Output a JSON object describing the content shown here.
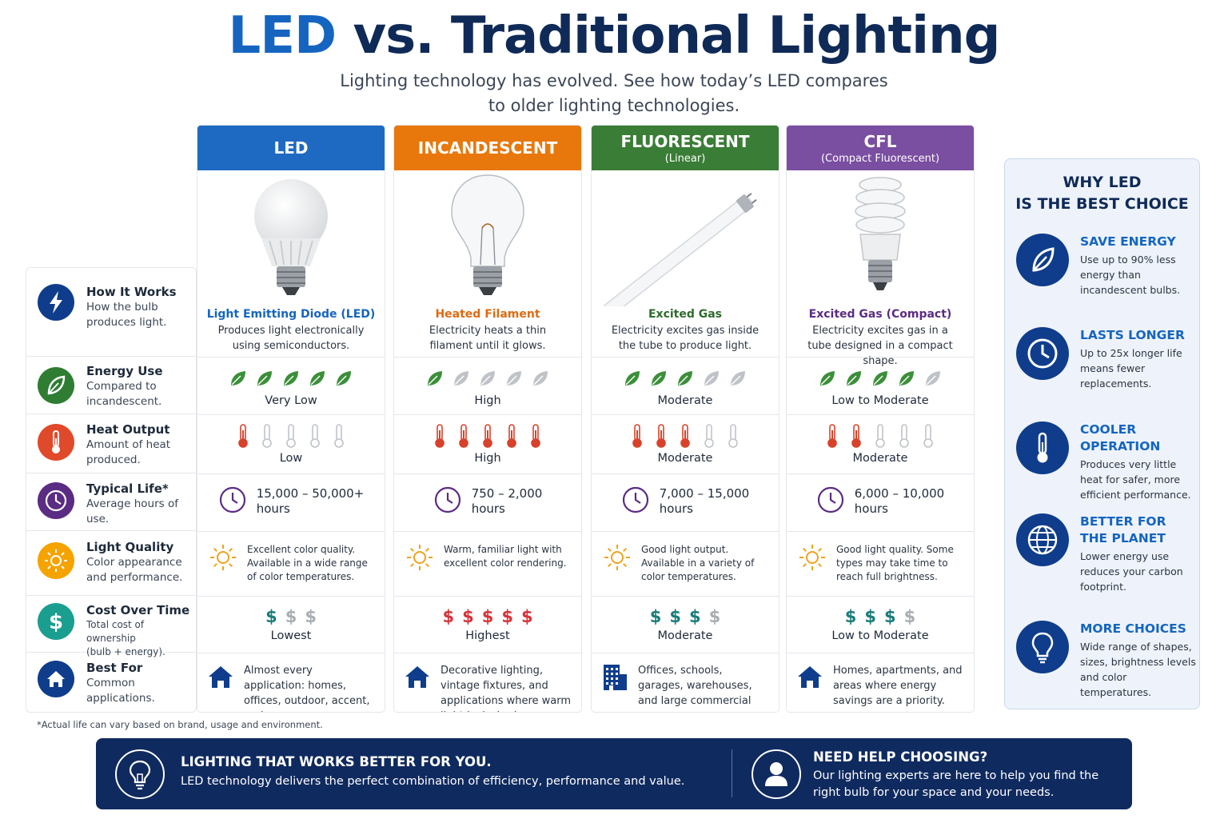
{
  "header": {
    "title_accent": "LED",
    "title_rest": " vs. Traditional Lighting",
    "subtitle_line1": "Lighting technology has evolved. See how today’s LED compares",
    "subtitle_line2": "to older lighting technologies."
  },
  "row_labels": [
    {
      "name": "How It Works",
      "desc": "How the bulb produces light.",
      "icon": "lightning-icon",
      "color": "#0f3d8c"
    },
    {
      "name": "Energy Use",
      "desc": "Compared to incandescent.",
      "icon": "leaf-icon",
      "color": "#2e7d32"
    },
    {
      "name": "Heat Output",
      "desc": "Amount of heat produced.",
      "icon": "thermometer-icon",
      "color": "#e04a2a"
    },
    {
      "name": "Typical Life*",
      "desc": "Average hours of use.",
      "icon": "clock-icon",
      "color": "#5b2c83"
    },
    {
      "name": "Light Quality",
      "desc": "Color appearance and performance.",
      "icon": "sun-icon",
      "color": "#f5a300"
    },
    {
      "name": "Cost Over Time",
      "desc_main": "Total cost of ownership",
      "desc_sub": "(bulb + energy).",
      "icon": "dollar-icon",
      "color": "#1a9e8f"
    },
    {
      "name": "Best For",
      "desc": "Common applications.",
      "icon": "house-icon",
      "color": "#0f3d8c"
    }
  ],
  "columns": [
    {
      "header": "LED",
      "header_sub": "",
      "header_color": "#1e6ac2",
      "tech_color": "#1565c0",
      "image": "led-bulb-image",
      "tech_name": "Light Emitting Diode (LED)",
      "tech_desc": "Produces light electronically using semiconductors.",
      "energy_level": 5,
      "energy_label": "Very Low",
      "heat_level": 1,
      "heat_label": "Low",
      "life_line1": "15,000 – 50,000+",
      "life_line2": "hours",
      "quality": "Excellent color quality. Available in a wide range of color temperatures.",
      "cost_level": 1,
      "cost_label": "Lowest",
      "cost_color": "#1a7d7a",
      "best_icon": "house-icon",
      "best_for": "Almost every application: homes, offices, outdoor, accent, and more."
    },
    {
      "header": "INCANDESCENT",
      "header_sub": "",
      "header_color": "#e8780c",
      "tech_color": "#e06a10",
      "image": "incandescent-bulb-image",
      "tech_name": "Heated Filament",
      "tech_desc": "Electricity heats a thin filament until it glows.",
      "energy_level": 1,
      "energy_label": "High",
      "heat_level": 5,
      "heat_label": "High",
      "life_line1": "750 – 2,000",
      "life_line2": "hours",
      "quality": "Warm, familiar light with excellent color rendering.",
      "cost_level": 5,
      "cost_label": "Highest",
      "cost_color": "#d6343a",
      "best_icon": "house-icon",
      "best_for": "Decorative lighting, vintage fixtures, and applications where warm light is desired."
    },
    {
      "header": "FLUORESCENT",
      "header_sub": "(Linear)",
      "header_color": "#3a7d36",
      "tech_color": "#2e6b2b",
      "image": "fluorescent-tube-image",
      "tech_name": "Excited Gas",
      "tech_desc": "Electricity excites gas inside the tube to produce light.",
      "energy_level": 3,
      "energy_label": "Moderate",
      "heat_level": 3,
      "heat_label": "Moderate",
      "life_line1": "7,000 – 15,000",
      "life_line2": "hours",
      "quality": "Good light output. Available in a variety of color temperatures.",
      "cost_level": 3,
      "cost_label": "Moderate",
      "cost_color": "#1a7d7a",
      "best_icon": "office-building-icon",
      "best_for": "Offices, schools, garages, warehouses, and large commercial spaces."
    },
    {
      "header": "CFL",
      "header_sub": "(Compact Fluorescent)",
      "header_color": "#7a4ea0",
      "tech_color": "#5b2c83",
      "image": "cfl-bulb-image",
      "tech_name": "Excited Gas (Compact)",
      "tech_desc": "Electricity excites gas in a tube designed in a compact shape.",
      "energy_level": 4,
      "energy_label": "Low to Moderate",
      "heat_level": 2,
      "heat_label": "Moderate",
      "life_line1": "6,000 – 10,000",
      "life_line2": "hours",
      "quality": "Good light quality. Some types may take time to reach full brightness.",
      "cost_level": 3,
      "cost_label": "Low to Moderate",
      "cost_color": "#1a7d7a",
      "best_icon": "house-icon",
      "best_for": "Homes, apartments, and areas where energy savings are a priority."
    }
  ],
  "footnote": "*Actual life can vary based on brand, usage and environment.",
  "why_panel": {
    "title_line1": "WHY LED",
    "title_line2": "IS THE BEST CHOICE",
    "items": [
      {
        "title1": "SAVE ENERGY",
        "title2": "",
        "desc": "Use up to 90% less energy than incandescent bulbs.",
        "icon": "leaf-icon"
      },
      {
        "title1": "LASTS LONGER",
        "title2": "",
        "desc": "Up to 25x longer life means fewer replacements.",
        "icon": "clock-icon"
      },
      {
        "title1": "COOLER OPERATION",
        "title2": "",
        "desc": "Produces very little heat for safer, more efficient performance.",
        "icon": "thermometer-icon"
      },
      {
        "title1": "BETTER FOR",
        "title2": "THE PLANET",
        "desc": "Lower energy use reduces your carbon footprint.",
        "icon": "globe-icon"
      },
      {
        "title1": "MORE CHOICES",
        "title2": "",
        "desc": "Wide range of shapes, sizes, brightness levels and color temperatures.",
        "icon": "lightbulb-icon"
      }
    ]
  },
  "banner": {
    "left_title": "LIGHTING THAT WORKS BETTER FOR YOU.",
    "left_desc": "LED technology delivers the perfect combination of efficiency, performance and value.",
    "right_title": "NEED HELP CHOOSING?",
    "right_desc_line1": "Our lighting experts are here to help you find the",
    "right_desc_line2": "right bulb for your space and your needs."
  },
  "colors": {
    "navy": "#0f2a5f",
    "accent_blue": "#1565c0",
    "leaf_on": "#3c8f3a",
    "leaf_off": "#bfc3c8",
    "thermo_on": "#d9412a",
    "thermo_off": "#bfc3c8",
    "cost_off": "#a9aeb4",
    "sun": "#f0a21c",
    "clock": "#5b2c83"
  }
}
